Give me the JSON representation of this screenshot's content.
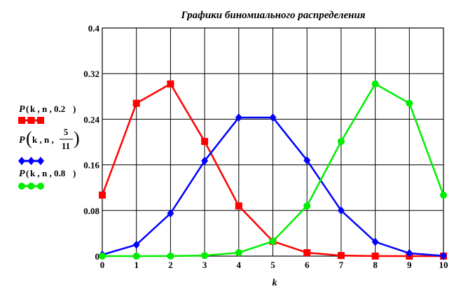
{
  "chart_data": {
    "type": "line",
    "title": "Графики биномиального распределения",
    "xlabel": "k",
    "ylabel": "",
    "x": [
      0,
      1,
      2,
      3,
      4,
      5,
      6,
      7,
      8,
      9,
      10
    ],
    "x_ticks": [
      "0",
      "1",
      "2",
      "3",
      "4",
      "5",
      "6",
      "7",
      "8",
      "9",
      "10"
    ],
    "y_ticks": [
      "0",
      "0.08",
      "0.16",
      "0.24",
      "0.32",
      "0.4"
    ],
    "xlim": [
      0,
      10
    ],
    "ylim": [
      0,
      0.4
    ],
    "grid": true,
    "legend_position": "left",
    "series": [
      {
        "name": "P(k, n, 0.2)",
        "color": "#ff0000",
        "marker": "square",
        "values": [
          0.107,
          0.268,
          0.302,
          0.201,
          0.088,
          0.026,
          0.006,
          0.001,
          0.0001,
          0.0,
          0.0
        ]
      },
      {
        "name": "P(k, n, 5/11)",
        "color": "#0000ff",
        "marker": "diamond",
        "values": [
          0.0024,
          0.02,
          0.075,
          0.167,
          0.243,
          0.243,
          0.168,
          0.08,
          0.025,
          0.005,
          0.0005
        ]
      },
      {
        "name": "P(k, n, 0.8)",
        "color": "#00ee00",
        "marker": "circle",
        "values": [
          0.0,
          0.0,
          0.0001,
          0.001,
          0.006,
          0.026,
          0.088,
          0.201,
          0.302,
          0.268,
          0.107
        ]
      }
    ]
  },
  "legend": {
    "items": [
      {
        "prefix": "P",
        "args": "k , n , 0.2"
      },
      {
        "prefix": "P",
        "args1": "k , n ,",
        "frac_num": "5",
        "frac_den": "11"
      },
      {
        "prefix": "P",
        "args": "k , n , 0.8"
      }
    ]
  }
}
